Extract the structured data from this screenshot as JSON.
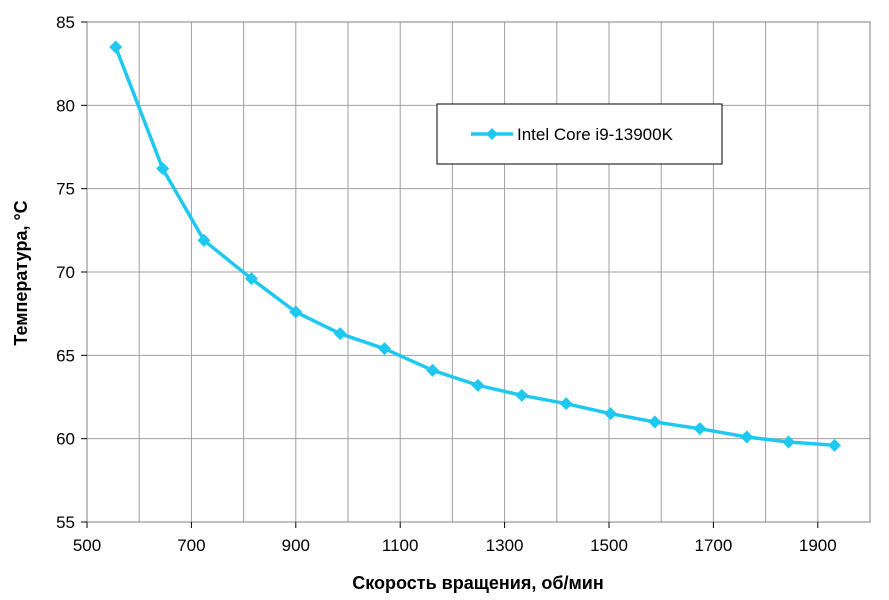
{
  "chart_data": {
    "type": "line",
    "title": "",
    "xlabel": "Скорость вращения, об/мин",
    "ylabel": "Температура, °С",
    "xlim": [
      500,
      2000
    ],
    "ylim": [
      55,
      85
    ],
    "x_ticks": [
      500,
      700,
      900,
      1100,
      1300,
      1500,
      1700,
      1900
    ],
    "y_ticks": [
      55,
      60,
      65,
      70,
      75,
      80,
      85
    ],
    "x_grid_step": 100,
    "grid": true,
    "legend_position": "top-right",
    "series": [
      {
        "name": "Intel Core i9-13900K",
        "color": "#1ec8f0",
        "marker": "diamond",
        "x": [
          555,
          645,
          724,
          815,
          900,
          985,
          1070,
          1162,
          1249,
          1333,
          1418,
          1503,
          1588,
          1674,
          1764,
          1844,
          1932
        ],
        "y": [
          83.5,
          76.2,
          71.9,
          69.6,
          67.6,
          66.3,
          65.4,
          64.1,
          63.2,
          62.6,
          62.1,
          61.5,
          61.0,
          60.6,
          60.1,
          59.8,
          59.6
        ]
      }
    ]
  }
}
